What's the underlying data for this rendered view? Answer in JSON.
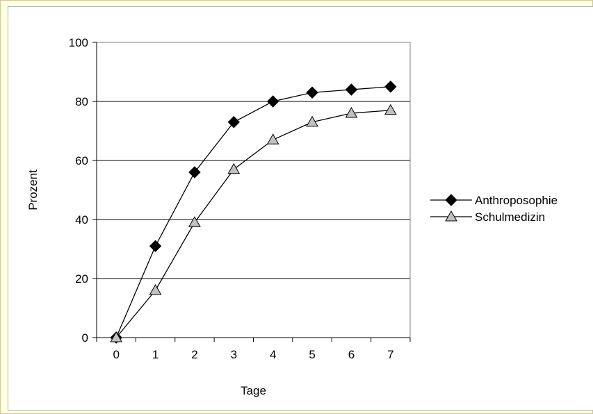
{
  "chart_data": {
    "type": "line",
    "title": "",
    "xlabel": "Tage",
    "ylabel": "Prozent",
    "x": [
      0,
      1,
      2,
      3,
      4,
      5,
      6,
      7
    ],
    "xlim": [
      -0.5,
      7.5
    ],
    "ylim": [
      0,
      100
    ],
    "yticks": [
      0,
      20,
      40,
      60,
      80,
      100
    ],
    "grid": true,
    "legend_position": "right",
    "series": [
      {
        "name": "Anthroposophie",
        "marker": "diamond",
        "marker_color": "#000000",
        "values": [
          0,
          31,
          56,
          73,
          80,
          83,
          84,
          85
        ]
      },
      {
        "name": "Schulmedizin",
        "marker": "triangle",
        "marker_color": "#c0c0c0",
        "values": [
          0,
          16,
          39,
          57,
          67,
          73,
          76,
          77
        ]
      }
    ]
  }
}
